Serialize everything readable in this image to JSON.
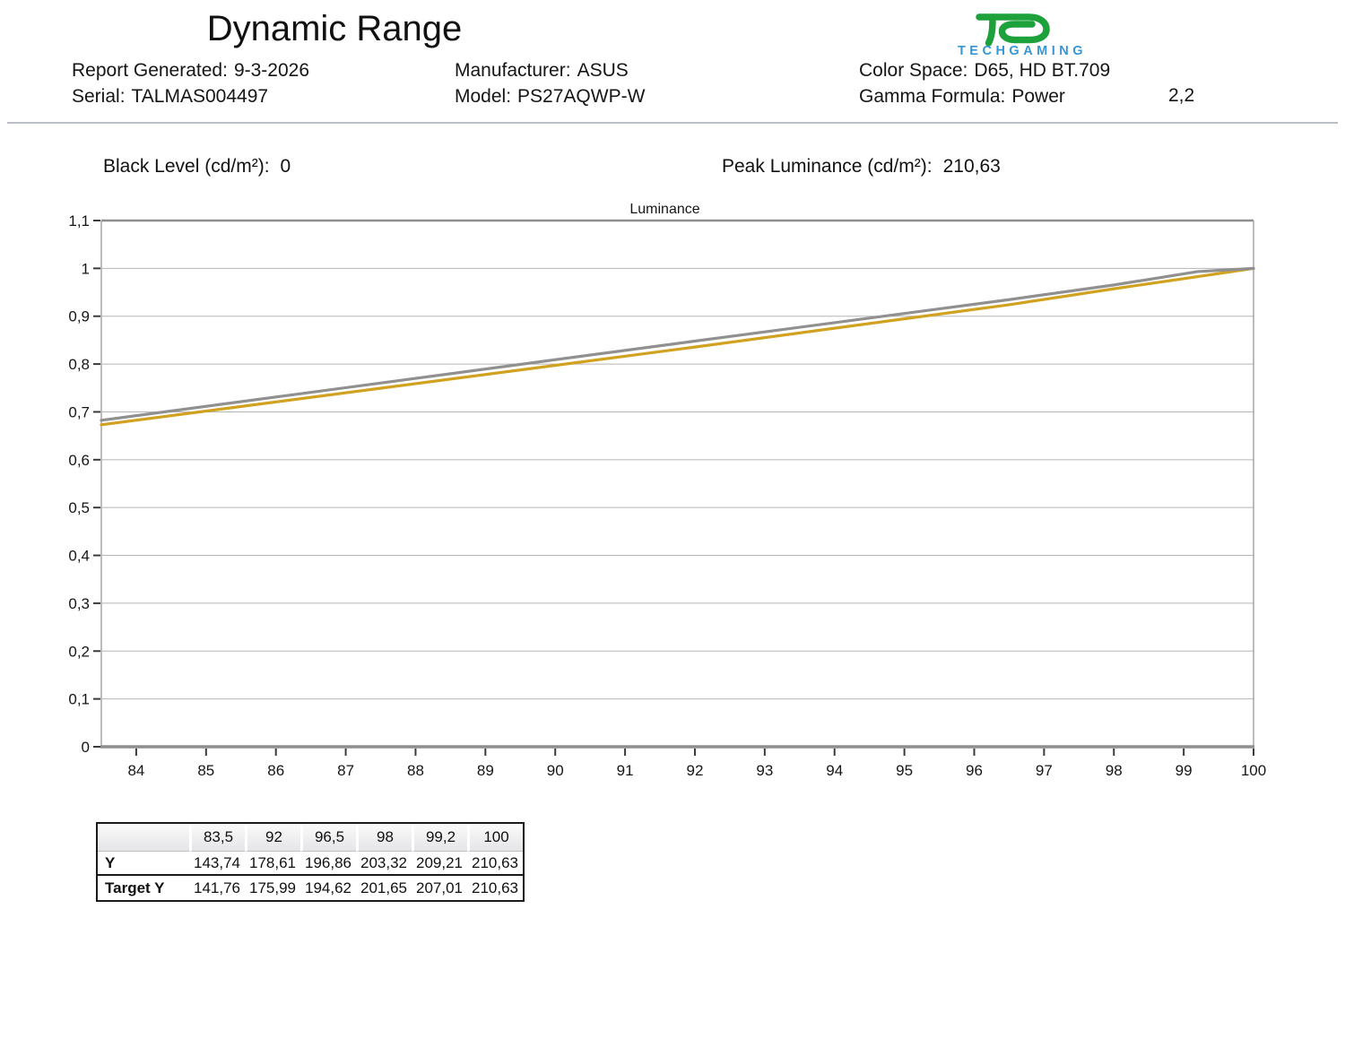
{
  "header": {
    "title": "Dynamic Range",
    "info": {
      "report_generated": {
        "label": "Report Generated:",
        "value": "9-3-2026"
      },
      "serial": {
        "label": "Serial:",
        "value": "TALMAS004497"
      },
      "manufacturer": {
        "label": "Manufacturer:",
        "value": "ASUS"
      },
      "model": {
        "label": "Model:",
        "value": "PS27AQWP-W"
      },
      "color_space": {
        "label": "Color Space:",
        "value": "D65, HD BT.709"
      },
      "gamma_formula": {
        "label": "Gamma Formula:",
        "value": "Power"
      },
      "gamma_value": "2,2"
    },
    "logo": {
      "name": "techgaming-logo",
      "text": "TECHGAMING",
      "green": "#1ca13b",
      "blue": "#3697d4"
    }
  },
  "summary": {
    "black_level_label": "Black Level (cd/m²):",
    "black_level_value": "0",
    "peak_luminance_label": "Peak Luminance (cd/m²):",
    "peak_luminance_value": "210,63"
  },
  "chart_data": {
    "type": "line",
    "title": "Luminance",
    "x": [
      83.5,
      92,
      96.5,
      98,
      99.2,
      100
    ],
    "series": [
      {
        "name": "Target Y",
        "values": [
          141.76,
          175.99,
          194.62,
          201.65,
          207.01,
          210.63
        ],
        "color": "#d1a11f"
      },
      {
        "name": "Y",
        "values": [
          143.74,
          178.61,
          196.86,
          203.32,
          209.21,
          210.63
        ],
        "color": "#909090"
      }
    ],
    "normalize_by": 210.63,
    "xlim": [
      83.5,
      100
    ],
    "ylim": [
      0,
      1.1
    ],
    "x_ticks": [
      84,
      85,
      86,
      87,
      88,
      89,
      90,
      91,
      92,
      93,
      94,
      95,
      96,
      97,
      98,
      99,
      100
    ],
    "y_tick_values": [
      0,
      0.1,
      0.2,
      0.3,
      0.4,
      0.5,
      0.6,
      0.7,
      0.8,
      0.9,
      1.0,
      1.1
    ],
    "y_tick_labels": [
      "0",
      "0,1",
      "0,2",
      "0,3",
      "0,4",
      "0,5",
      "0,6",
      "0,7",
      "0,8",
      "0,9",
      "1",
      "1,1"
    ],
    "grid": true,
    "legend": "none",
    "colors": {
      "grid": "#b5b5b5",
      "border": "#8e8e8e",
      "tick": "#3a3a3a",
      "label": "#161616"
    }
  },
  "table": {
    "columns": [
      "",
      "83,5",
      "92",
      "96,5",
      "98",
      "99,2",
      "100"
    ],
    "rows": [
      {
        "label": "Y",
        "values": [
          "143,74",
          "178,61",
          "196,86",
          "203,32",
          "209,21",
          "210,63"
        ]
      },
      {
        "label": "Target Y",
        "values": [
          "141,76",
          "175,99",
          "194,62",
          "201,65",
          "207,01",
          "210,63"
        ]
      }
    ]
  }
}
